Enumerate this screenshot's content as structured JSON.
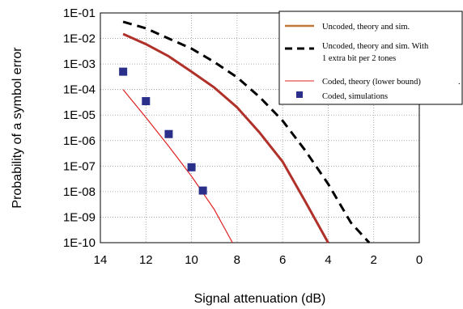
{
  "chart_data": {
    "type": "line",
    "title": "",
    "xlabel": "Signal attenuation (dB)",
    "ylabel": "Probability of a symbol error",
    "xlim": [
      14,
      0
    ],
    "x_reversed": true,
    "ylim": [
      1e-10,
      0.1
    ],
    "log_y": true,
    "grid": true,
    "x_ticks": [
      "14",
      "12",
      "10",
      "8",
      "6",
      "4",
      "2",
      "0"
    ],
    "y_ticks": [
      "1E-01",
      "1E-02",
      "1E-03",
      "1E-04",
      "1E-05",
      "1E-06",
      "1E-07",
      "1E-08",
      "1E-09",
      "1E-10"
    ],
    "legend_position": "top-right",
    "series": [
      {
        "name": "Uncoded, theory and sim.",
        "style": "solid",
        "color": "#b0302a",
        "legend_color": "#c0783a",
        "x": [
          13,
          12,
          11,
          10,
          9,
          8,
          7,
          6,
          5,
          4
        ],
        "y": [
          0.015,
          0.006,
          0.002,
          0.0005,
          0.00012,
          2e-05,
          2e-06,
          1.5e-07,
          4e-09,
          1e-10
        ]
      },
      {
        "name": "Uncoded, theory and sim. With",
        "name_line2": "1 extra bit per 2 tones",
        "style": "dashed",
        "color": "#000000",
        "x": [
          13,
          12,
          11,
          10,
          9,
          8,
          7,
          6,
          5,
          4,
          3,
          2.2
        ],
        "y": [
          0.045,
          0.025,
          0.01,
          0.004,
          0.0012,
          0.0003,
          5e-05,
          6e-06,
          4e-07,
          2e-08,
          6e-10,
          1e-10
        ]
      },
      {
        "name": "Coded, theory (lower bound)",
        "style": "thin",
        "color": "#e02020",
        "x": [
          13,
          12,
          11,
          10,
          9,
          8.2
        ],
        "y": [
          0.0001,
          8e-06,
          6e-07,
          4e-08,
          2e-09,
          1e-10
        ]
      },
      {
        "name": "Coded, simulations",
        "style": "markers",
        "color": "#2a2f8a",
        "x": [
          13,
          12,
          11,
          10,
          9.5
        ],
        "y": [
          0.0005,
          3.5e-05,
          1.8e-06,
          9e-08,
          1.1e-08
        ]
      }
    ],
    "legend_dot": "."
  }
}
